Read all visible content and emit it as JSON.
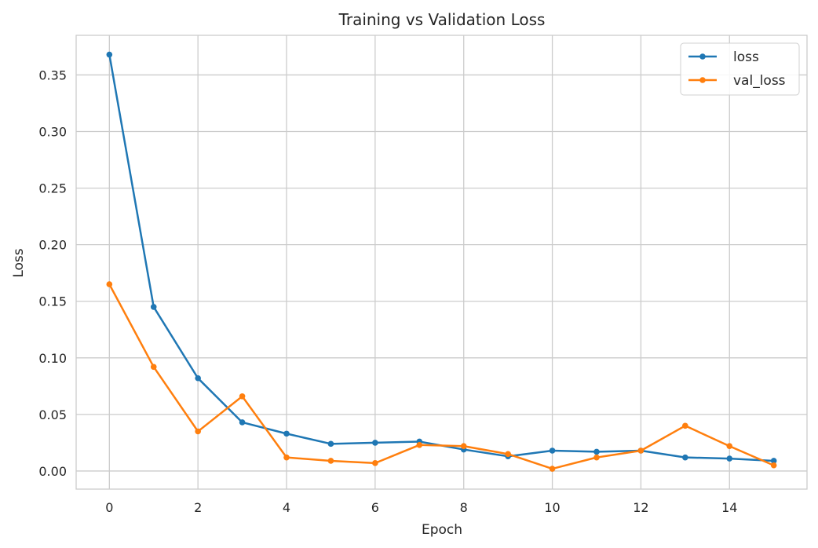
{
  "chart_data": {
    "type": "line",
    "title": "Training vs Validation Loss",
    "xlabel": "Epoch",
    "ylabel": "Loss",
    "x": [
      0,
      1,
      2,
      3,
      4,
      5,
      6,
      7,
      8,
      9,
      10,
      11,
      12,
      13,
      14,
      15
    ],
    "xlim": [
      -0.75,
      15.75
    ],
    "ylim": [
      -0.016,
      0.385
    ],
    "xticks": [
      0,
      2,
      4,
      6,
      8,
      10,
      12,
      14
    ],
    "yticks": [
      0.0,
      0.05,
      0.1,
      0.15,
      0.2,
      0.25,
      0.3,
      0.35
    ],
    "ytick_labels": [
      "0.00",
      "0.05",
      "0.10",
      "0.15",
      "0.20",
      "0.25",
      "0.30",
      "0.35"
    ],
    "grid": true,
    "legend_position": "upper right",
    "series": [
      {
        "name": "loss",
        "color": "#1f77b4",
        "marker": "circle",
        "values": [
          0.368,
          0.145,
          0.082,
          0.043,
          0.033,
          0.024,
          0.025,
          0.026,
          0.019,
          0.013,
          0.018,
          0.017,
          0.018,
          0.012,
          0.011,
          0.009
        ]
      },
      {
        "name": "val_loss",
        "color": "#ff7f0e",
        "marker": "circle",
        "values": [
          0.165,
          0.092,
          0.035,
          0.066,
          0.012,
          0.009,
          0.007,
          0.023,
          0.022,
          0.015,
          0.002,
          0.012,
          0.018,
          0.04,
          0.022,
          0.005
        ]
      }
    ]
  }
}
